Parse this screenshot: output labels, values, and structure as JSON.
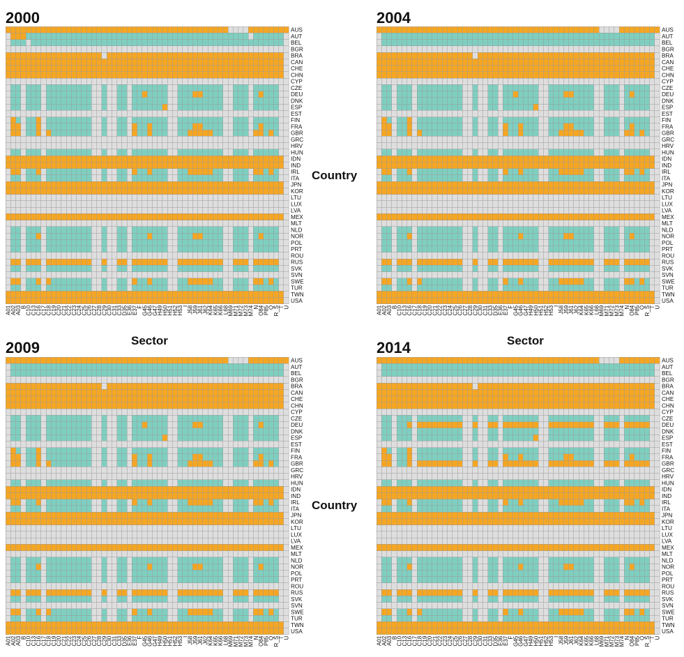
{
  "colors": {
    "high": "#f5a623",
    "medium": "#7fcfc0",
    "low": "#dedede",
    "grid": "#9a9a9a"
  },
  "axis_titles": {
    "left_country": "Country",
    "left_sector": "Sector",
    "right_country": "Country",
    "right_sector": "Sector"
  },
  "chart_data": {
    "type": "heatmap",
    "legend": "none",
    "value_encoding": {
      "2": "orange (high)",
      "1": "teal (medium)",
      "0": "grey (low)"
    },
    "xlabel": "Sector",
    "ylabel": "Country",
    "countries": [
      "AUS",
      "AUT",
      "BEL",
      "BGR",
      "BRA",
      "CAN",
      "CHE",
      "CHN",
      "CYP",
      "CZE",
      "DEU",
      "DNK",
      "ESP",
      "EST",
      "FIN",
      "FRA",
      "GBR",
      "GRC",
      "HRV",
      "HUN",
      "IDN",
      "IND",
      "IRL",
      "ITA",
      "JPN",
      "KOR",
      "LTU",
      "LUX",
      "LVA",
      "MEX",
      "MLT",
      "NLD",
      "NOR",
      "POL",
      "PRT",
      "ROU",
      "RUS",
      "SVK",
      "SVN",
      "SWE",
      "TUR",
      "TWN",
      "USA"
    ],
    "sectors": [
      "A01",
      "A02",
      "A03",
      "B",
      "C10",
      "C13",
      "C16",
      "C17",
      "C18",
      "C19",
      "C20",
      "C21",
      "C22",
      "C23",
      "C24",
      "C25",
      "C26",
      "C27",
      "C28",
      "C29",
      "C30",
      "C31",
      "C33",
      "D35",
      "E36",
      "E37",
      "F",
      "G45",
      "G46",
      "G47",
      "H49",
      "H50",
      "H51",
      "H52",
      "H53",
      "I",
      "J58",
      "J59",
      "J61",
      "J62",
      "K64",
      "K65",
      "K66",
      "L68",
      "M69",
      "M71",
      "M72",
      "M73",
      "M74",
      "N",
      "O84",
      "P85",
      "Q",
      "R_S",
      "T",
      "U"
    ],
    "sector_tick_labels": [
      "A01",
      "A02",
      "A03",
      "B",
      "C10",
      "C13",
      "C16",
      "C17",
      "C18",
      "C19",
      "C20",
      "C21",
      "C22",
      "C23",
      "C24",
      "C25",
      "C26",
      "C27",
      "C28",
      "C29",
      "C30",
      "C31",
      "C33",
      "D35",
      "E36",
      "E37",
      "F",
      "G45",
      "G46",
      "G47",
      "H49",
      "H50",
      "H51",
      "H52",
      "H53",
      "I",
      "J58",
      "J59",
      "J61",
      "J62",
      "K64",
      "K65",
      "K66",
      "L68",
      "M69",
      "M71",
      "M72",
      "M73",
      "M74",
      "N",
      "O84",
      "P85",
      "Q",
      "R_S",
      "T",
      "U"
    ],
    "panels": [
      {
        "year": "2000",
        "rows": [
          "22222222222222222222222222222222222222222222000022222222",
          "02221111111111111111111111111111111111111111111101111110",
          "01110111111111111111111111111111111111111111111111111110",
          "00000000000000000000000000000000000000000000000000000000",
          "22222222222222222220222222222222222222222222222222222220",
          "22222222222222222222222222222222222222222222222222222220",
          "22222222222222222222222222222222222222222222222222222220",
          "22222222222222222222222222222222222222222222222222222220",
          "00000000000000000000000000000000000000000000000000000000",
          "01101110111111111001001101111111001111111110011101111100",
          "01101110111111111001001101121111001112211110011101211100",
          "01101110111111111001001101111111001111111110011101111100",
          "01101110111111111001001101111112001111111110011101111100",
          "00000000000000000000000000000000000000000000000000000000",
          "02101120111111111001001101111111001111111110011101111100",
          "02201120111111111001001102112111001112211110011101211100",
          "02201120211111111001001102112111001122222110011102212100",
          "00000000000000000000000000000000000000000000000000000000",
          "00000000000000000000000000000000000000000000000000000000",
          "01101110111111111001001101111111001111111110011101111100",
          "22222222222222222222222222222222222222222222222222222220",
          "22222222222222222222222222222222222222222222222222222220",
          "02201120111111111001001102112111001122222110011102212100",
          "01101110111111111001001101111111001111111110011101111100",
          "22222222222222222222222222222222222222222222222222222220",
          "22222222222222222222222222222222222222222222222222222220",
          "00000000000000000000000000000000000000000000000000000000",
          "00000000000000000000000000000000000000000000000000000000",
          "00000000000000000000000000000000000000000000000000000000",
          "22222222222222222222222222222222222222222222222222222220",
          "00000000000000000000000000000000000000000000000000000000",
          "01101110111111111001001101111111001111111110011101111100",
          "01101120111111111001001101112111001112211110011101211100",
          "01101110111111111001001101111111001111111110011101111100",
          "01101110111111111001001101111111001111111110011101111100",
          "00000000000000000000000000000000000000000000000000000000",
          "02202220222222222002002202222222002222222220022202222200",
          "01101110111111111001001101111111001111111110011101111100",
          "00000000000000000000000000000000000000000000000000000000",
          "02201120211111111001001102112111001122222110011102212100",
          "01101110111111111001001101111111001111111110011101111100",
          "22222222222222222222222222222222222222222222222222222220",
          "22222222222222222222222222222222222222222222222222222220"
        ]
      },
      {
        "year": "2004",
        "rows": [
          "22222222222222222222222222222222222222222222000022222222",
          "01111111111111111111111111111111111111111111111111111110",
          "01111111111111111111111111111111111111111111111111111110",
          "00000000000000000000000000000000000000000000000000000000",
          "22222222222222222220222222222222222222222222222222222220",
          "22222222222222222222222222222222222222222222222222222220",
          "22222222222222222222222222222222222222222222222222222220",
          "22222222222222222222222222222222222222222222222222222220",
          "00000000000000000000000000000000000000000000000000000000",
          "01101110111111111001001101111111001111111110011101111100",
          "01101110111111111001001101121111001112211110011101211100",
          "01101110111111111001001101111111001111111110011101111100",
          "01101110111111111001001101111112001111111110011101111100",
          "00000000000000000000000000000000000000000000000000000000",
          "02101120111111111001001101111111001111111110011101111100",
          "02201120111111111001001102112111001112211110011101211100",
          "02201120211111111001001102112111001122222110011102212100",
          "00000000000000000000000000000000000000000000000000000000",
          "00000000000000000000000000000000000000000000000000000000",
          "01101110111111111001001101111111001111111110011101111100",
          "22222222222222222222222222222222222222222222222222222220",
          "22222222222222222222222222222222222222222222222222222220",
          "02201120111111111001001102112111001122222110011102212100",
          "01101110111111111001001101111111001111111110011101111100",
          "22222222222222222222222222222222222222222222222222222220",
          "22222222222222222222222222222222222222222222222222222220",
          "00000000000000000000000000000000000000000000000000000000",
          "00000000000000000000000000000000000000000000000000000000",
          "00000000000000000000000000000000000000000000000000000000",
          "22222222222222222222222222222222222222222222222222222220",
          "00000000000000000000000000000000000000000000000000000000",
          "01101110111111111001001101111111001111111110011101111100",
          "01101120111111111001001101112111001112211110011101211100",
          "01101110111111111001001101111111001111111110011101111100",
          "01101110111111111001001101111111001111111110011101111100",
          "00000000000000000000000000000000000000000000000000000000",
          "02202220222222222002002202222222002222222220022202222200",
          "01101110111111111001001101111111001111111110011101111100",
          "00000000000000000000000000000000000000000000000000000000",
          "02201120211111111001001102112111001122222110011102212100",
          "01101110111111111001001101111111001111111110011101111100",
          "22222222222222222222222222222222222222222222222222222220",
          "22222222222222222222222222222222222222222222222222222220"
        ]
      },
      {
        "year": "2009",
        "rows": [
          "22222222222222222222222222222222222222222222000022222222",
          "01111111111111111111111111111111111111111111111111111110",
          "01111111111111111111111111111111111111111111111111111110",
          "00000000000000000000000000000000000000000000000000000000",
          "22222222222222222220222222222222222222222222222222222220",
          "22222222222222222222222222222222222222222222222222222220",
          "22222222222222222222222222222222222222222222222222222220",
          "22222222222222222222222222222222222222222222222222222220",
          "00000000000000000000000000000000000000000000000000000000",
          "01101110111111111001001101111111001111111110011101111100",
          "01101110111111111001001101121111001112211110011101211100",
          "01101110111111111001001101111111001111111110011101111100",
          "01101110111111111001001101111112001111111110011101111100",
          "00000000000000000000000000000000000000000000000000000000",
          "02101120111111111001001101111111001111111110011101111100",
          "02201120111111111001001102112111001112211110011101211100",
          "02201120211111111001001102112111001122222110011102212100",
          "00000000000000000000000000000000000000000000000000000000",
          "00000000000000000000000000000000000000000000000000000000",
          "01101110111111111001001101111111001111111110011101111100",
          "22222222222222222222222222222222222222222222222222222220",
          "22222222222222222222222222222222222222222222222222222220",
          "02201120111111111001001102112111001122222110011102212100",
          "01101110111111111001001101111111001111111110011101111100",
          "22222222222222222222222222222222222222222222222222222220",
          "22222222222222222222222222222222222222222222222222222220",
          "00000000000000000000000000000000000000000000000000000000",
          "00000000000000000000000000000000000000000000000000000000",
          "00000000000000000000000000000000000000000000000000000000",
          "22222222222222222222222222222222222222222222222222222220",
          "00000000000000000000000000000000000000000000000000000000",
          "01101110111111111001001101111111001111111110011101111100",
          "01101120111111111001001101112111001112211110011101211100",
          "01101110111111111001001101111111001111111110011101111100",
          "01101110111111111001001101111111001111111110011101111100",
          "00000000000000000000000000000000000000000000000000000000",
          "02202220222222222002002202222222002222222220022202222200",
          "01101110111111111001001101111111001111111110011101111100",
          "00000000000000000000000000000000000000000000000000000000",
          "02201120211111111001001102112111001122222110011102212100",
          "01101110111111111001001101111111001111111110011101111100",
          "22222222222222222222222222222222222222222222222222222220",
          "22222222222222222222222222222222222222222222222222222220"
        ]
      },
      {
        "year": "2014",
        "rows": [
          "22222222222222222222222222222222222222222222000022222222",
          "01111111111111111111111111111111111111111111111111111110",
          "01111111111111111111111111111111111111111111111111111110",
          "00000000000000000000000000000000000000000000000000000000",
          "22222222222222222220222222222222222222222222222222222220",
          "22222222222222222222222222222222222222222222222222222220",
          "22222222222222222222222222222222222222222222222222222220",
          "22222222222222222222222222222222222222222222222222222220",
          "00000000000000000000000000000000000000000000000000000000",
          "01101110111111111001001101111111001111111110011101111100",
          "01101120222222222002002202222222002222222220022202222200",
          "01101110111111111001001101111111001111111110011101111100",
          "01101110111111111001001101111112001111111110011101111100",
          "00000000000000000000000000000000000000000000000000000000",
          "02101120111111111001001101111111001111111110011101111100",
          "02201120111111111001001102112111001112211110011101211100",
          "02201120222222222002002202222222002222222220022202222200",
          "00000000000000000000000000000000000000000000000000000000",
          "00000000000000000000000000000000000000000000000000000000",
          "01101110111111111001001101111111001111111110011101111100",
          "22222222222222222222222222222222222222222222222222222220",
          "22222222222222222222222222222222222222222222222222222220",
          "02201120111111111001001102112111001122222110011102212100",
          "01101110111111111001001101111111001111111110011101111100",
          "22222222222222222222222222222222222222222222222222222220",
          "22222222222222222222222222222222222222222222222222222220",
          "00000000000000000000000000000000000000000000000000000000",
          "00000000000000000000000000000000000000000000000000000000",
          "00000000000000000000000000000000000000000000000000000000",
          "22222222222222222222222222222222222222222222222222222220",
          "00000000000000000000000000000000000000000000000000000000",
          "01101110111111111001001101111111001111111110011101111100",
          "01101120111111111001001101112111001112211110011101211100",
          "01101110111111111001001101111111001111111110011101111100",
          "01101110111111111001001101111111001111111110011101111100",
          "00000000000000000000000000000000000000000000000000000000",
          "02202220222222222002002202222222002222222220022202222200",
          "01101110111111111001001101111111001111111110011101111100",
          "00000000000000000000000000000000000000000000000000000000",
          "02201120211111111001001102112111001122222110011102212100",
          "01101110111111111001001101111111001111111110011101111100",
          "22222222222222222222222222222222222222222222222222222220",
          "22222222222222222222222222222222222222222222222222222220"
        ]
      }
    ]
  }
}
